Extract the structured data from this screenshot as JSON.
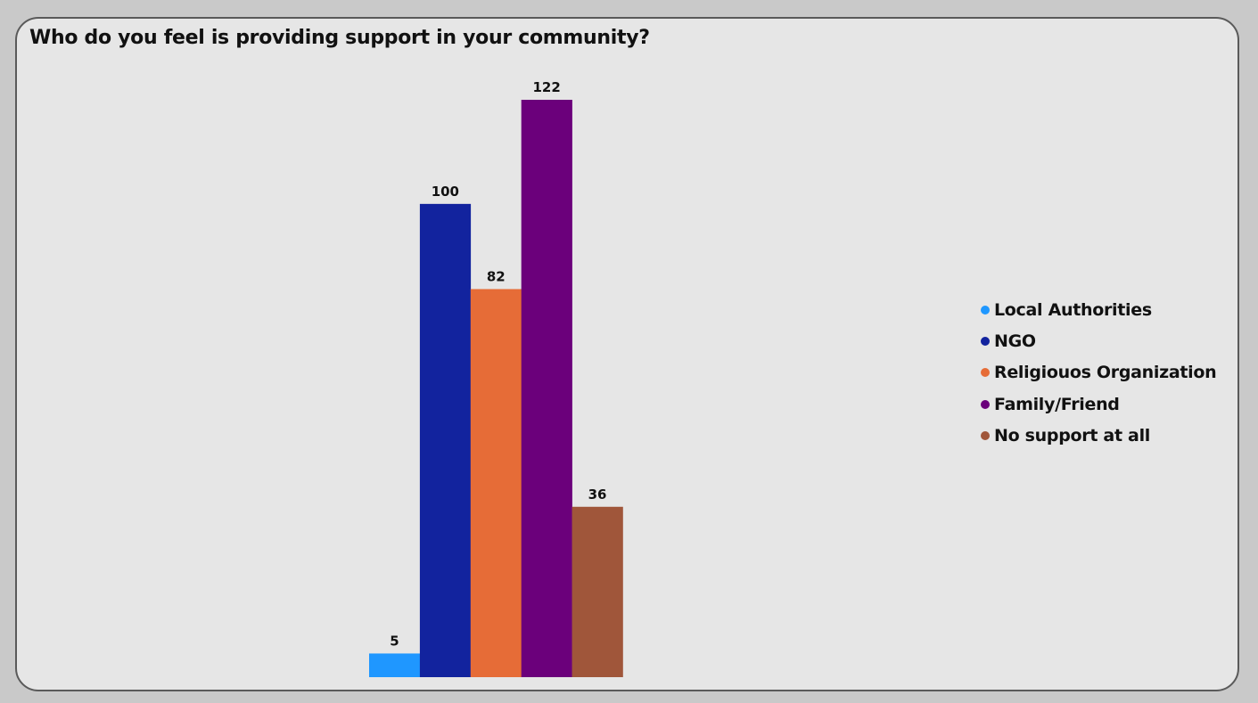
{
  "chart_data": {
    "type": "bar",
    "title": "Who do you feel is providing support in your community?",
    "categories": [
      "Local Authorities",
      "NGO",
      "Religiouos Organization",
      "Family/Friend",
      "No support at all"
    ],
    "values": [
      5,
      100,
      82,
      122,
      36
    ],
    "colors": [
      "#1f97ff",
      "#12239e",
      "#e66c37",
      "#6b007b",
      "#a0563a"
    ],
    "data_labels": [
      "5",
      "100",
      "82",
      "122",
      "36"
    ],
    "xlabel": "",
    "ylabel": "",
    "ylim": [
      0,
      122
    ],
    "grid": false,
    "legend_position": "right"
  }
}
